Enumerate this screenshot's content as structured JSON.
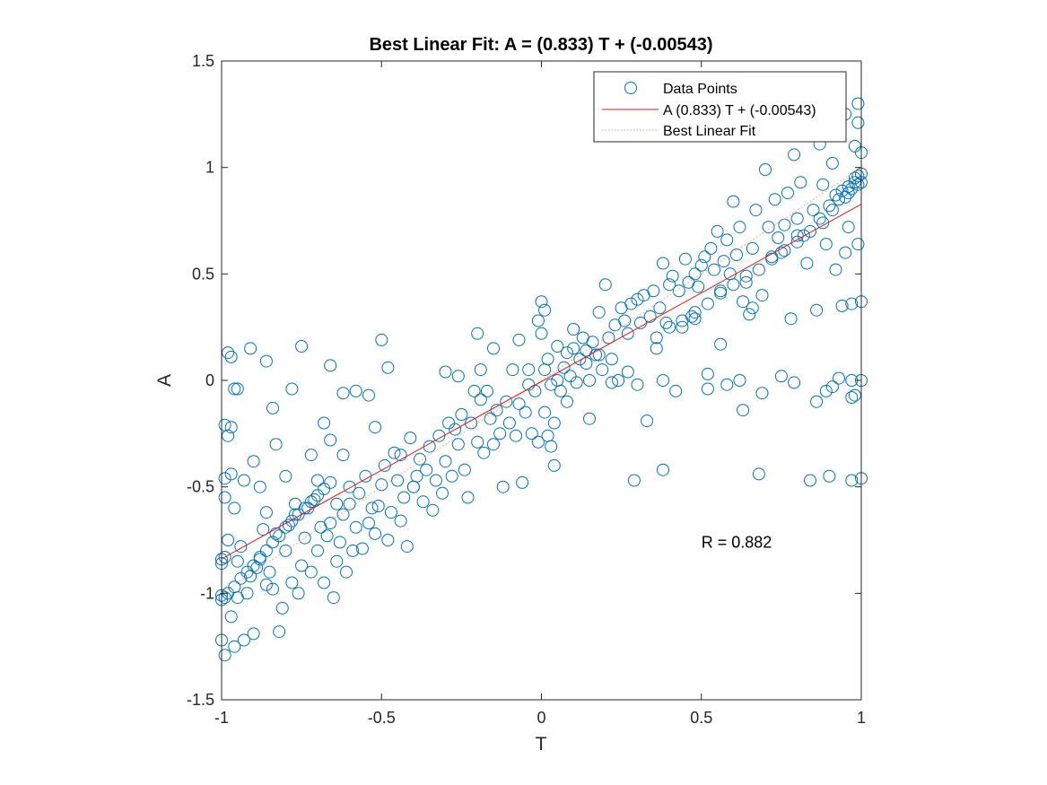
{
  "chart_data": {
    "type": "scatter",
    "title": "Best Linear Fit:  A = (0.833) T + (-0.00543)",
    "xlabel": "T",
    "ylabel": "A",
    "xlim": [
      -1,
      1
    ],
    "ylim": [
      -1.5,
      1.5
    ],
    "xticks": [
      "-1",
      "-0.5",
      "0",
      "0.5",
      "1"
    ],
    "yticks": [
      "-1.5",
      "-1",
      "-0.5",
      "0",
      "0.5",
      "1",
      "1.5"
    ],
    "xtick_values": [
      -1,
      -0.5,
      0,
      0.5,
      1
    ],
    "ytick_values": [
      -1.5,
      -1,
      -0.5,
      0,
      0.5,
      1,
      1.5
    ],
    "grid": false,
    "legend_position": "top-right",
    "annotation": "R = 0.882",
    "annotation_at": {
      "x": 0.5,
      "y": -0.76
    },
    "fit": {
      "slope": 0.833,
      "intercept": -0.00543
    },
    "colors": {
      "points": "#0072BD",
      "fit_line": "#E01919",
      "ideal_line": "#E8A060"
    },
    "series": [
      {
        "name": "Data Points",
        "kind": "markers"
      },
      {
        "name": "A (0.833) T + (-0.00543)",
        "kind": "line"
      },
      {
        "name": "Best Linear Fit",
        "kind": "dotted-line"
      }
    ],
    "points": [
      [
        -1.0,
        -0.84
      ],
      [
        -1.0,
        -0.86
      ],
      [
        -1.0,
        -1.01
      ],
      [
        -1.0,
        -1.03
      ],
      [
        -1.0,
        -1.22
      ],
      [
        -0.99,
        -1.29
      ],
      [
        -0.99,
        -1.02
      ],
      [
        -0.99,
        -0.83
      ],
      [
        -0.98,
        -0.75
      ],
      [
        -0.98,
        -1.0
      ],
      [
        -0.97,
        -1.11
      ],
      [
        -0.96,
        -1.25
      ],
      [
        -0.95,
        -1.02
      ],
      [
        -0.95,
        -0.85
      ],
      [
        -0.94,
        -0.78
      ],
      [
        -0.93,
        -1.22
      ],
      [
        -0.92,
        -1.0
      ],
      [
        -0.91,
        -0.92
      ],
      [
        -0.9,
        -1.19
      ],
      [
        -0.89,
        -0.88
      ],
      [
        -0.88,
        -0.83
      ],
      [
        -0.87,
        -0.7
      ],
      [
        -0.86,
        -0.96
      ],
      [
        -0.85,
        -0.9
      ],
      [
        -0.84,
        -0.98
      ],
      [
        -0.83,
        -0.72
      ],
      [
        -0.82,
        -1.18
      ],
      [
        -0.81,
        -1.07
      ],
      [
        -0.8,
        -0.8
      ],
      [
        -0.79,
        -0.68
      ],
      [
        -0.78,
        -0.95
      ],
      [
        -0.77,
        -0.63
      ],
      [
        -0.76,
        -1.0
      ],
      [
        -0.75,
        -0.87
      ],
      [
        -0.74,
        -0.74
      ],
      [
        -0.73,
        -0.6
      ],
      [
        -0.72,
        -0.9
      ],
      [
        -0.71,
        -0.56
      ],
      [
        -0.7,
        -0.8
      ],
      [
        -0.69,
        -0.69
      ],
      [
        -0.68,
        -0.95
      ],
      [
        -0.67,
        -0.73
      ],
      [
        -0.66,
        -0.67
      ],
      [
        -0.65,
        -1.02
      ],
      [
        -0.64,
        -0.85
      ],
      [
        -0.63,
        -0.76
      ],
      [
        -0.62,
        -0.63
      ],
      [
        -0.61,
        -0.9
      ],
      [
        -0.6,
        -0.58
      ],
      [
        -0.59,
        -0.8
      ],
      [
        -0.58,
        -0.69
      ],
      [
        -0.57,
        -0.53
      ],
      [
        -0.56,
        -0.79
      ],
      [
        -0.55,
        -0.45
      ],
      [
        -0.54,
        -0.67
      ],
      [
        -0.53,
        -0.6
      ],
      [
        -0.52,
        -0.72
      ],
      [
        -0.51,
        -0.59
      ],
      [
        -0.5,
        -0.49
      ],
      [
        -0.49,
        -0.4
      ],
      [
        -0.48,
        -0.75
      ],
      [
        -0.47,
        -0.62
      ],
      [
        -0.46,
        -0.34
      ],
      [
        -0.45,
        -0.47
      ],
      [
        -0.44,
        -0.66
      ],
      [
        -0.43,
        -0.55
      ],
      [
        -0.42,
        -0.78
      ],
      [
        -0.41,
        -0.27
      ],
      [
        -0.4,
        -0.5
      ],
      [
        -0.39,
        -0.45
      ],
      [
        -0.38,
        -0.37
      ],
      [
        -0.37,
        -0.57
      ],
      [
        -0.36,
        -0.42
      ],
      [
        -0.35,
        -0.31
      ],
      [
        -0.34,
        -0.61
      ],
      [
        -0.33,
        -0.47
      ],
      [
        -0.32,
        -0.26
      ],
      [
        -0.31,
        -0.53
      ],
      [
        -0.3,
        -0.38
      ],
      [
        -0.29,
        -0.2
      ],
      [
        -0.28,
        -0.45
      ],
      [
        -0.27,
        -0.23
      ],
      [
        -0.26,
        -0.3
      ],
      [
        -0.25,
        -0.16
      ],
      [
        -0.24,
        -0.42
      ],
      [
        -0.23,
        -0.55
      ],
      [
        -0.22,
        -0.2
      ],
      [
        -0.21,
        -0.05
      ],
      [
        -0.2,
        -0.29
      ],
      [
        -0.19,
        -0.09
      ],
      [
        -0.18,
        -0.34
      ],
      [
        -0.17,
        -0.05
      ],
      [
        -0.16,
        -0.18
      ],
      [
        -0.15,
        -0.3
      ],
      [
        -0.14,
        -0.14
      ],
      [
        -0.13,
        -0.25
      ],
      [
        -0.12,
        -0.5
      ],
      [
        -0.11,
        -0.1
      ],
      [
        -0.1,
        -0.2
      ],
      [
        -0.09,
        0.05
      ],
      [
        -0.08,
        -0.26
      ],
      [
        -0.07,
        -0.11
      ],
      [
        -0.06,
        -0.48
      ],
      [
        -0.05,
        -0.15
      ],
      [
        -0.04,
        -0.02
      ],
      [
        -0.03,
        -0.25
      ],
      [
        -0.02,
        -0.05
      ],
      [
        -0.01,
        -0.29
      ],
      [
        0.0,
        0.22
      ],
      [
        0.0,
        0.37
      ],
      [
        0.01,
        -0.15
      ],
      [
        0.01,
        0.05
      ],
      [
        0.02,
        -0.26
      ],
      [
        0.02,
        0.1
      ],
      [
        0.03,
        -0.31
      ],
      [
        0.03,
        -0.02
      ],
      [
        0.04,
        -0.4
      ],
      [
        0.04,
        -0.2
      ],
      [
        0.05,
        0.0
      ],
      [
        0.05,
        0.16
      ],
      [
        0.06,
        -0.05
      ],
      [
        0.07,
        0.06
      ],
      [
        0.08,
        -0.1
      ],
      [
        0.09,
        0.02
      ],
      [
        0.1,
        0.24
      ],
      [
        0.11,
        -0.01
      ],
      [
        0.12,
        0.1
      ],
      [
        0.13,
        0.2
      ],
      [
        0.14,
        0.14
      ],
      [
        0.15,
        -0.18
      ],
      [
        0.16,
        0.18
      ],
      [
        0.17,
        0.12
      ],
      [
        0.18,
        0.32
      ],
      [
        0.19,
        0.05
      ],
      [
        0.2,
        0.45
      ],
      [
        0.21,
        0.2
      ],
      [
        0.22,
        0.1
      ],
      [
        0.23,
        0.26
      ],
      [
        0.24,
        0.0
      ],
      [
        0.25,
        0.34
      ],
      [
        0.26,
        0.28
      ],
      [
        0.27,
        0.22
      ],
      [
        0.28,
        0.36
      ],
      [
        0.29,
        -0.47
      ],
      [
        0.3,
        0.38
      ],
      [
        0.31,
        0.27
      ],
      [
        0.32,
        0.4
      ],
      [
        0.33,
        -0.19
      ],
      [
        0.34,
        0.3
      ],
      [
        0.35,
        0.42
      ],
      [
        0.36,
        0.2
      ],
      [
        0.37,
        0.34
      ],
      [
        0.38,
        0.55
      ],
      [
        0.38,
        -0.42
      ],
      [
        0.39,
        0.27
      ],
      [
        0.4,
        0.45
      ],
      [
        0.41,
        0.49
      ],
      [
        0.42,
        -0.05
      ],
      [
        0.43,
        0.42
      ],
      [
        0.44,
        0.25
      ],
      [
        0.45,
        0.57
      ],
      [
        0.46,
        0.46
      ],
      [
        0.47,
        0.3
      ],
      [
        0.48,
        0.5
      ],
      [
        0.49,
        0.44
      ],
      [
        0.5,
        0.54
      ],
      [
        0.51,
        0.58
      ],
      [
        0.52,
        0.03
      ],
      [
        0.53,
        0.62
      ],
      [
        0.54,
        0.52
      ],
      [
        0.55,
        0.7
      ],
      [
        0.56,
        0.17
      ],
      [
        0.57,
        0.56
      ],
      [
        0.58,
        0.66
      ],
      [
        0.59,
        0.5
      ],
      [
        0.6,
        0.84
      ],
      [
        0.61,
        0.59
      ],
      [
        0.62,
        0.72
      ],
      [
        0.63,
        -0.14
      ],
      [
        0.63,
        0.37
      ],
      [
        0.64,
        0.46
      ],
      [
        0.65,
        0.31
      ],
      [
        0.66,
        0.62
      ],
      [
        0.67,
        0.8
      ],
      [
        0.68,
        -0.44
      ],
      [
        0.69,
        0.4
      ],
      [
        0.7,
        0.99
      ],
      [
        0.71,
        0.72
      ],
      [
        0.72,
        0.58
      ],
      [
        0.73,
        0.85
      ],
      [
        0.74,
        0.67
      ],
      [
        0.75,
        0.02
      ],
      [
        0.76,
        0.73
      ],
      [
        0.77,
        0.88
      ],
      [
        0.78,
        0.29
      ],
      [
        0.79,
        1.06
      ],
      [
        0.8,
        0.76
      ],
      [
        0.81,
        0.93
      ],
      [
        0.82,
        0.68
      ],
      [
        0.83,
        0.55
      ],
      [
        0.84,
        -0.47
      ],
      [
        0.85,
        0.8
      ],
      [
        0.86,
        -0.1
      ],
      [
        0.86,
        0.33
      ],
      [
        0.87,
        1.11
      ],
      [
        0.88,
        0.92
      ],
      [
        0.89,
        0.64
      ],
      [
        0.9,
        0.82
      ],
      [
        0.9,
        -0.45
      ],
      [
        0.91,
        1.02
      ],
      [
        0.92,
        0.52
      ],
      [
        0.92,
        0.87
      ],
      [
        0.93,
        1.15
      ],
      [
        0.94,
        0.35
      ],
      [
        0.94,
        0.89
      ],
      [
        0.95,
        1.25
      ],
      [
        0.95,
        0.6
      ],
      [
        0.96,
        0.72
      ],
      [
        0.96,
        0.91
      ],
      [
        0.97,
        0.36
      ],
      [
        0.97,
        -0.47
      ],
      [
        0.97,
        0.0
      ],
      [
        0.98,
        1.1
      ],
      [
        0.98,
        0.93
      ],
      [
        0.98,
        -0.07
      ],
      [
        0.99,
        1.3
      ],
      [
        0.99,
        0.64
      ],
      [
        0.99,
        0.96
      ],
      [
        0.99,
        1.21
      ],
      [
        1.0,
        0.37
      ],
      [
        1.0,
        0.0
      ],
      [
        1.0,
        0.93
      ],
      [
        1.0,
        1.07
      ],
      [
        1.0,
        -0.46
      ],
      [
        0.97,
        -0.08
      ],
      [
        0.93,
        0.01
      ],
      [
        0.91,
        -0.03
      ],
      [
        0.89,
        -0.05
      ],
      [
        0.79,
        -0.01
      ],
      [
        0.69,
        -0.06
      ],
      [
        0.62,
        0.0
      ],
      [
        0.58,
        -0.02
      ],
      [
        0.52,
        -0.04
      ],
      [
        0.38,
        0.0
      ],
      [
        0.3,
        -0.02
      ],
      [
        0.22,
        -0.01
      ],
      [
        0.15,
        0.0
      ],
      [
        -0.48,
        0.06
      ],
      [
        -0.5,
        0.19
      ],
      [
        -0.62,
        -0.06
      ],
      [
        -0.66,
        0.07
      ],
      [
        -0.75,
        0.16
      ],
      [
        -0.86,
        0.09
      ],
      [
        -0.91,
        0.15
      ],
      [
        -0.95,
        -0.04
      ],
      [
        -0.97,
        0.11
      ],
      [
        -0.99,
        -0.21
      ],
      [
        -0.99,
        -0.46
      ],
      [
        -0.98,
        0.13
      ],
      [
        -0.96,
        -0.04
      ],
      [
        -0.84,
        -0.13
      ],
      [
        -0.78,
        -0.04
      ],
      [
        -0.68,
        -0.2
      ],
      [
        -0.66,
        -0.28
      ],
      [
        -0.62,
        -0.35
      ],
      [
        -0.58,
        -0.05
      ],
      [
        -0.54,
        -0.07
      ],
      [
        -0.52,
        -0.22
      ],
      [
        -0.44,
        -0.35
      ],
      [
        -0.4,
        -0.5
      ],
      [
        -0.3,
        0.04
      ],
      [
        -0.26,
        0.02
      ],
      [
        -0.2,
        0.22
      ],
      [
        -0.19,
        0.05
      ],
      [
        -0.15,
        0.15
      ],
      [
        -0.07,
        0.19
      ],
      [
        -0.04,
        0.05
      ],
      [
        -0.01,
        0.28
      ],
      [
        0.01,
        0.33
      ],
      [
        0.08,
        0.13
      ],
      [
        0.1,
        0.15
      ],
      [
        0.14,
        0.08
      ],
      [
        0.18,
        0.12
      ],
      [
        0.27,
        0.04
      ],
      [
        0.36,
        0.15
      ],
      [
        0.48,
        0.29
      ],
      [
        0.56,
        0.42
      ],
      [
        0.66,
        0.34
      ],
      [
        0.75,
        0.6
      ],
      [
        0.8,
        0.68
      ],
      [
        0.87,
        0.76
      ],
      [
        0.93,
        0.85
      ],
      [
        0.96,
        0.88
      ],
      [
        0.98,
        0.95
      ],
      [
        1.0,
        0.97
      ],
      [
        0.99,
        0.92
      ],
      [
        0.97,
        0.9
      ],
      [
        0.95,
        0.86
      ],
      [
        0.91,
        0.8
      ],
      [
        0.88,
        0.74
      ],
      [
        0.84,
        0.7
      ],
      [
        0.8,
        0.65
      ],
      [
        0.76,
        0.61
      ],
      [
        0.72,
        0.57
      ],
      [
        0.68,
        0.52
      ],
      [
        0.64,
        0.49
      ],
      [
        0.6,
        0.45
      ],
      [
        0.56,
        0.41
      ],
      [
        0.52,
        0.36
      ],
      [
        0.48,
        0.32
      ],
      [
        0.44,
        0.28
      ],
      [
        0.4,
        0.25
      ],
      [
        -0.96,
        -0.97
      ],
      [
        -0.94,
        -0.93
      ],
      [
        -0.92,
        -0.9
      ],
      [
        -0.9,
        -0.87
      ],
      [
        -0.88,
        -0.84
      ],
      [
        -0.86,
        -0.8
      ],
      [
        -0.84,
        -0.76
      ],
      [
        -0.82,
        -0.73
      ],
      [
        -0.8,
        -0.69
      ],
      [
        -0.78,
        -0.66
      ],
      [
        -0.76,
        -0.63
      ],
      [
        -0.74,
        -0.6
      ],
      [
        -0.72,
        -0.57
      ],
      [
        -0.7,
        -0.54
      ],
      [
        -0.68,
        -0.51
      ],
      [
        -0.66,
        -0.48
      ],
      [
        -0.97,
        -0.44
      ],
      [
        -0.98,
        -0.26
      ],
      [
        -0.99,
        -0.55
      ],
      [
        -0.97,
        -0.22
      ],
      [
        -0.96,
        -0.6
      ],
      [
        -0.93,
        -0.47
      ],
      [
        -0.9,
        -0.38
      ],
      [
        -0.88,
        -0.5
      ],
      [
        -0.86,
        -0.62
      ],
      [
        -0.83,
        -0.3
      ],
      [
        -0.8,
        -0.45
      ],
      [
        -0.77,
        -0.58
      ],
      [
        -0.72,
        -0.35
      ],
      [
        -0.7,
        -0.47
      ],
      [
        -0.64,
        -0.58
      ],
      [
        -0.6,
        -0.5
      ]
    ]
  }
}
